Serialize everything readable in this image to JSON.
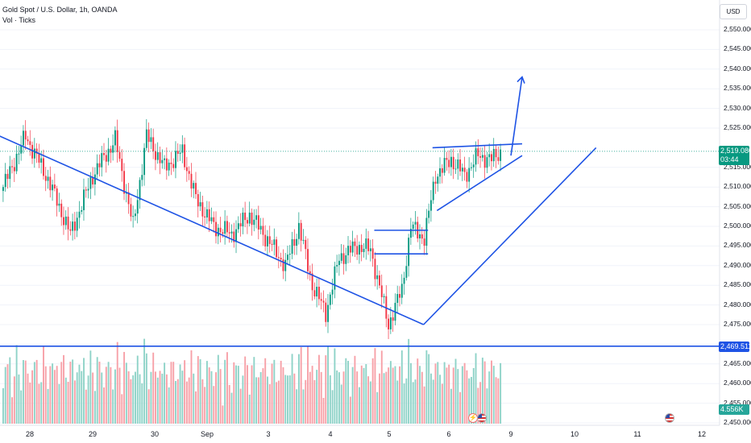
{
  "header": {
    "symbol_line": "Gold Spot / U.S. Dollar, 1h, OANDA",
    "indicator_line": "Vol · Ticks"
  },
  "currency_button": "USD",
  "price_axis": {
    "labels": [
      "2,550.000",
      "2,545.000",
      "2,540.000",
      "2,535.000",
      "2,530.000",
      "2,525.000",
      "2,515.000",
      "2,510.000",
      "2,505.000",
      "2,500.000",
      "2,495.000",
      "2,490.000",
      "2,485.000",
      "2,480.000",
      "2,475.000",
      "2,465.000",
      "2,460.000",
      "2,455.000",
      "2,450.000"
    ],
    "range": [
      2450,
      2550
    ]
  },
  "current_price": {
    "value": "2,519.080",
    "countdown": "03:44",
    "color": "#089981"
  },
  "support_level": {
    "value": "2,469.511",
    "color": "#1e53e5"
  },
  "volume_badge": {
    "value": "4.556K",
    "color": "#26a69a"
  },
  "time_axis": {
    "labels": [
      "28",
      "29",
      "30",
      "Sep",
      "3",
      "4",
      "5",
      "6",
      "9",
      "10",
      "11",
      "12"
    ]
  },
  "colors": {
    "up": "#089981",
    "down": "#f23645",
    "drawing": "#1e53e5",
    "vol_up": "#8fd3c8",
    "vol_down": "#f7a1a8"
  },
  "icons": {
    "event_flags": [
      "us-flag-icon",
      "lightning-icon",
      "us-flag-icon"
    ]
  },
  "chart_data": {
    "type": "candlestick",
    "instrument": "Gold Spot / U.S. Dollar",
    "timeframe": "1h",
    "y_range": [
      2450,
      2550
    ],
    "waypoints": [
      [
        0,
        2510
      ],
      [
        10,
        2523
      ],
      [
        20,
        2512
      ],
      [
        30,
        2498
      ],
      [
        40,
        2513
      ],
      [
        50,
        2522
      ],
      [
        58,
        2500
      ],
      [
        64,
        2523
      ],
      [
        72,
        2515
      ],
      [
        80,
        2519
      ],
      [
        86,
        2507
      ],
      [
        94,
        2500
      ],
      [
        102,
        2498
      ],
      [
        110,
        2503
      ],
      [
        120,
        2495
      ],
      [
        126,
        2490
      ],
      [
        132,
        2500
      ],
      [
        138,
        2485
      ],
      [
        144,
        2478
      ],
      [
        150,
        2492
      ],
      [
        158,
        2495
      ],
      [
        164,
        2494
      ],
      [
        172,
        2475
      ],
      [
        178,
        2484
      ],
      [
        182,
        2500
      ],
      [
        188,
        2497
      ],
      [
        193,
        2513
      ],
      [
        200,
        2517
      ],
      [
        206,
        2513
      ],
      [
        212,
        2518
      ],
      [
        218,
        2517
      ],
      [
        222,
        2519
      ]
    ],
    "lines": [
      {
        "label": "descending-trendline",
        "points": [
          [
            -25,
            2529
          ],
          [
            188,
            2475
          ]
        ]
      },
      {
        "label": "projection-up",
        "points": [
          [
            188,
            2475
          ],
          [
            265,
            2520
          ]
        ]
      },
      {
        "label": "range-top",
        "points": [
          [
            166,
            2499
          ],
          [
            190,
            2499
          ]
        ]
      },
      {
        "label": "range-bottom",
        "points": [
          [
            166,
            2493
          ],
          [
            190,
            2493
          ]
        ]
      },
      {
        "label": "triangle-resistance",
        "points": [
          [
            192,
            2520
          ],
          [
            232,
            2521
          ]
        ]
      },
      {
        "label": "triangle-support",
        "points": [
          [
            194,
            2504
          ],
          [
            232,
            2518
          ]
        ]
      },
      {
        "label": "breakout-arrow",
        "points": [
          [
            227,
            2518
          ],
          [
            232,
            2538
          ]
        ]
      }
    ],
    "horizontal_levels": [
      2519.08,
      2469.511
    ]
  }
}
